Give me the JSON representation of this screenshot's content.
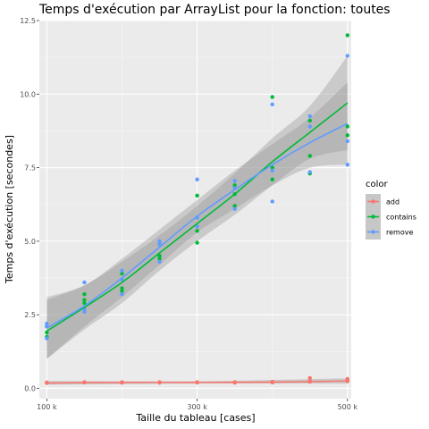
{
  "chart_data": {
    "type": "scatter",
    "title": "Temps d'exécution par ArrayList pour la fonction: toutes",
    "xlabel": "Taille du tableau [cases]",
    "ylabel": "Temps d'exécution [secondes]",
    "xlim": [
      90000,
      505000
    ],
    "ylim": [
      -0.35,
      12.5
    ],
    "xticks": [
      100000,
      300000,
      500000
    ],
    "xtick_labels": [
      "100 k",
      "300 k",
      "500 k"
    ],
    "yticks": [
      0,
      2.5,
      5,
      7.5,
      10,
      12.5
    ],
    "ytick_labels": [
      "0.0",
      "2.5",
      "5.0",
      "7.5",
      "10.0",
      "12.5"
    ],
    "grid": true,
    "legend": {
      "title": "color",
      "position": "right"
    },
    "smoothing": "loess with confidence band",
    "series": [
      {
        "name": "add",
        "color": "#F8766D",
        "points": [
          [
            100000,
            0.18
          ],
          [
            100000,
            0.2
          ],
          [
            100000,
            0.19
          ],
          [
            150000,
            0.2
          ],
          [
            150000,
            0.21
          ],
          [
            150000,
            0.2
          ],
          [
            200000,
            0.2
          ],
          [
            200000,
            0.19
          ],
          [
            200000,
            0.21
          ],
          [
            250000,
            0.2
          ],
          [
            250000,
            0.21
          ],
          [
            250000,
            0.19
          ],
          [
            300000,
            0.2
          ],
          [
            300000,
            0.21
          ],
          [
            300000,
            0.2
          ],
          [
            350000,
            0.19
          ],
          [
            350000,
            0.2
          ],
          [
            350000,
            0.21
          ],
          [
            400000,
            0.21
          ],
          [
            400000,
            0.22
          ],
          [
            400000,
            0.2
          ],
          [
            450000,
            0.22
          ],
          [
            450000,
            0.35
          ],
          [
            450000,
            0.25
          ],
          [
            500000,
            0.24
          ],
          [
            500000,
            0.32
          ],
          [
            500000,
            0.28
          ]
        ],
        "fit": [
          [
            100000,
            0.18
          ],
          [
            200000,
            0.2
          ],
          [
            300000,
            0.2
          ],
          [
            400000,
            0.21
          ],
          [
            500000,
            0.25
          ]
        ],
        "band": [
          [
            100000,
            0.12,
            0.25
          ],
          [
            300000,
            0.16,
            0.24
          ],
          [
            500000,
            0.16,
            0.34
          ]
        ]
      },
      {
        "name": "contains",
        "color": "#00BA38",
        "points": [
          [
            100000,
            1.9
          ],
          [
            100000,
            2.1
          ],
          [
            100000,
            1.75
          ],
          [
            150000,
            2.9
          ],
          [
            150000,
            3.2
          ],
          [
            150000,
            3.0
          ],
          [
            200000,
            3.9
          ],
          [
            200000,
            3.3
          ],
          [
            200000,
            3.4
          ],
          [
            250000,
            4.4
          ],
          [
            250000,
            4.5
          ],
          [
            250000,
            4.9
          ],
          [
            300000,
            4.95
          ],
          [
            300000,
            5.35
          ],
          [
            300000,
            6.55
          ],
          [
            350000,
            6.2
          ],
          [
            350000,
            6.9
          ],
          [
            350000,
            6.6
          ],
          [
            400000,
            7.1
          ],
          [
            400000,
            9.9
          ],
          [
            400000,
            7.5
          ],
          [
            450000,
            7.3
          ],
          [
            450000,
            7.9
          ],
          [
            450000,
            9.1
          ],
          [
            500000,
            8.6
          ],
          [
            500000,
            12.0
          ],
          [
            500000,
            8.9
          ]
        ],
        "fit": [
          [
            100000,
            1.95
          ],
          [
            150000,
            2.75
          ],
          [
            200000,
            3.6
          ],
          [
            250000,
            4.6
          ],
          [
            300000,
            5.6
          ],
          [
            350000,
            6.6
          ],
          [
            400000,
            7.7
          ],
          [
            450000,
            8.7
          ],
          [
            500000,
            9.7
          ]
        ],
        "band": [
          [
            100000,
            1.0,
            3.0
          ],
          [
            150000,
            2.0,
            3.5
          ],
          [
            200000,
            2.9,
            4.3
          ],
          [
            250000,
            4.0,
            5.2
          ],
          [
            300000,
            5.0,
            6.2
          ],
          [
            350000,
            5.9,
            7.3
          ],
          [
            400000,
            6.9,
            8.5
          ],
          [
            450000,
            7.8,
            9.6
          ],
          [
            500000,
            8.1,
            11.3
          ]
        ]
      },
      {
        "name": "remove",
        "color": "#619CFF",
        "points": [
          [
            100000,
            2.2
          ],
          [
            100000,
            2.1
          ],
          [
            100000,
            1.7
          ],
          [
            150000,
            3.6
          ],
          [
            150000,
            2.6
          ],
          [
            150000,
            2.7
          ],
          [
            200000,
            4.0
          ],
          [
            200000,
            3.7
          ],
          [
            200000,
            3.2
          ],
          [
            250000,
            5.0
          ],
          [
            250000,
            4.9
          ],
          [
            250000,
            4.3
          ],
          [
            300000,
            7.1
          ],
          [
            300000,
            5.8
          ],
          [
            300000,
            5.5
          ],
          [
            350000,
            7.05
          ],
          [
            350000,
            6.1
          ],
          [
            350000,
            6.8
          ],
          [
            400000,
            9.65
          ],
          [
            400000,
            6.35
          ],
          [
            400000,
            7.4
          ],
          [
            450000,
            9.25
          ],
          [
            450000,
            7.35
          ],
          [
            450000,
            8.9
          ],
          [
            500000,
            11.3
          ],
          [
            500000,
            7.6
          ],
          [
            500000,
            8.4
          ]
        ],
        "fit": [
          [
            100000,
            2.05
          ],
          [
            150000,
            2.8
          ],
          [
            200000,
            3.75
          ],
          [
            250000,
            4.8
          ],
          [
            300000,
            5.85
          ],
          [
            350000,
            6.75
          ],
          [
            400000,
            7.6
          ],
          [
            450000,
            8.35
          ],
          [
            500000,
            9.0
          ]
        ],
        "band": [
          [
            100000,
            1.0,
            3.1
          ],
          [
            150000,
            2.1,
            3.5
          ],
          [
            200000,
            3.1,
            4.4
          ],
          [
            250000,
            4.2,
            5.4
          ],
          [
            300000,
            5.3,
            6.4
          ],
          [
            350000,
            6.1,
            7.4
          ],
          [
            400000,
            6.9,
            8.3
          ],
          [
            450000,
            7.5,
            9.2
          ],
          [
            500000,
            7.6,
            10.4
          ]
        ]
      }
    ]
  }
}
